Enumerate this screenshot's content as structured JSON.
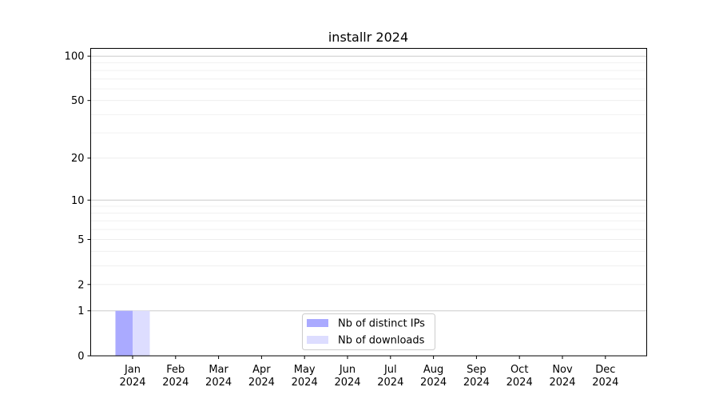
{
  "chart_data": {
    "type": "bar",
    "title": "installr 2024",
    "xlabel": "",
    "ylabel": "",
    "yscale": "symlog (log10(1+y))",
    "ylim": [
      0,
      113
    ],
    "yticks": [
      0,
      1,
      2,
      5,
      10,
      20,
      50,
      100
    ],
    "ytick_labels": [
      "0",
      "1",
      "2",
      "5",
      "10",
      "20",
      "50",
      "100"
    ],
    "yminor": [
      3,
      4,
      6,
      7,
      8,
      9,
      30,
      40,
      60,
      70,
      80,
      90
    ],
    "grid": true,
    "categories": [
      "Jan\n2024",
      "Feb\n2024",
      "Mar\n2024",
      "Apr\n2024",
      "May\n2024",
      "Jun\n2024",
      "Jul\n2024",
      "Aug\n2024",
      "Sep\n2024",
      "Oct\n2024",
      "Nov\n2024",
      "Dec\n2024"
    ],
    "series": [
      {
        "name": "Nb of distinct IPs",
        "color": "#aaaaff",
        "values": [
          1,
          0,
          0,
          0,
          0,
          0,
          0,
          0,
          0,
          0,
          0,
          0
        ]
      },
      {
        "name": "Nb of downloads",
        "color": "#ddddff",
        "values": [
          1,
          0,
          0,
          0,
          0,
          0,
          0,
          0,
          0,
          0,
          0,
          0
        ]
      }
    ],
    "legend_position": "bottom-center"
  }
}
